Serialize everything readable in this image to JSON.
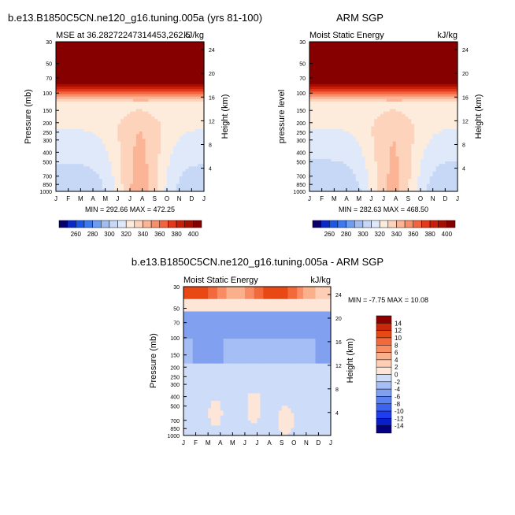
{
  "chart_data": [
    {
      "type": "heatmap",
      "id": "p1",
      "main_title": "b.e13.B1850C5CN.ne120_g16.tuning.005a (yrs 81-100)",
      "left_title": "MSE at 36.28272247314453,262.5",
      "right_title": "kJ/kg",
      "ylabel": "Pressure (mb)",
      "ylabel_right": "Height (km)",
      "x_ticks": [
        "J",
        "F",
        "M",
        "A",
        "M",
        "J",
        "J",
        "A",
        "S",
        "O",
        "N",
        "D",
        "J"
      ],
      "y_ticks": [
        "30",
        "50",
        "70",
        "100",
        "150",
        "200",
        "250",
        "300",
        "400",
        "500",
        "700",
        "850",
        "1000"
      ],
      "y_right_ticks": [
        "24",
        "20",
        "16",
        "12",
        "8",
        "4"
      ],
      "stats": "MIN = 292.66 MAX = 472.25",
      "colorbar_labels": [
        "260",
        "280",
        "300",
        "320",
        "340",
        "360",
        "380",
        "400"
      ],
      "zmin": 292.66,
      "zmax": 472.25
    },
    {
      "type": "heatmap",
      "id": "p2",
      "main_title": "ARM SGP",
      "left_title": "Moist Static Energy",
      "right_title": "kJ/kg",
      "ylabel": "pressure level",
      "ylabel_right": "Height (km)",
      "x_ticks": [
        "J",
        "F",
        "M",
        "A",
        "M",
        "J",
        "J",
        "A",
        "S",
        "O",
        "N",
        "D",
        "J"
      ],
      "y_ticks": [
        "30",
        "50",
        "70",
        "100",
        "150",
        "200",
        "250",
        "300",
        "400",
        "500",
        "700",
        "850",
        "1000"
      ],
      "y_right_ticks": [
        "24",
        "20",
        "16",
        "12",
        "8",
        "4"
      ],
      "stats": "MIN = 282.63 MAX = 468.50",
      "colorbar_labels": [
        "260",
        "280",
        "300",
        "320",
        "340",
        "360",
        "380",
        "400"
      ],
      "zmin": 282.63,
      "zmax": 468.5
    },
    {
      "type": "heatmap",
      "id": "p3",
      "main_title": "b.e13.B1850C5CN.ne120_g16.tuning.005a - ARM SGP",
      "left_title": "Moist Static Energy",
      "right_title": "kJ/kg",
      "ylabel": "Pressure (mb)",
      "ylabel_right": "Height (km)",
      "x_ticks": [
        "J",
        "F",
        "M",
        "A",
        "M",
        "J",
        "J",
        "A",
        "S",
        "O",
        "N",
        "D",
        "J"
      ],
      "y_ticks": [
        "30",
        "50",
        "70",
        "100",
        "150",
        "200",
        "250",
        "300",
        "400",
        "500",
        "700",
        "850",
        "1000"
      ],
      "y_right_ticks": [
        "24",
        "20",
        "16",
        "12",
        "8",
        "4"
      ],
      "stats": "MIN =  -7.75 MAX =  10.08",
      "colorbar_labels": [
        "14",
        "12",
        "10",
        "8",
        "6",
        "4",
        "2",
        "0",
        "-2",
        "-4",
        "-6",
        "-8",
        "-10",
        "-12",
        "-14"
      ],
      "zmin": -7.75,
      "zmax": 10.08
    }
  ],
  "colors": {
    "abs_palette": [
      "#08006b",
      "#0a28c8",
      "#1e55e6",
      "#3d78f0",
      "#6e9cf0",
      "#a0bcf0",
      "#c6d8f5",
      "#dfe9fa",
      "#fdebdc",
      "#fdd3bc",
      "#fbb596",
      "#f88e6a",
      "#f2643f",
      "#e3391b",
      "#c81e0a",
      "#a50f02",
      "#870000"
    ],
    "diff_palette": [
      "#050080",
      "#0a1ec8",
      "#1e3cf0",
      "#3c64f0",
      "#5a82f0",
      "#82a0f0",
      "#a5bef5",
      "#cddcf8",
      "#fde6d8",
      "#fdcdb4",
      "#fbb08c",
      "#f88c64",
      "#f26a3c",
      "#e84814",
      "#c8280a",
      "#8c0000"
    ]
  }
}
